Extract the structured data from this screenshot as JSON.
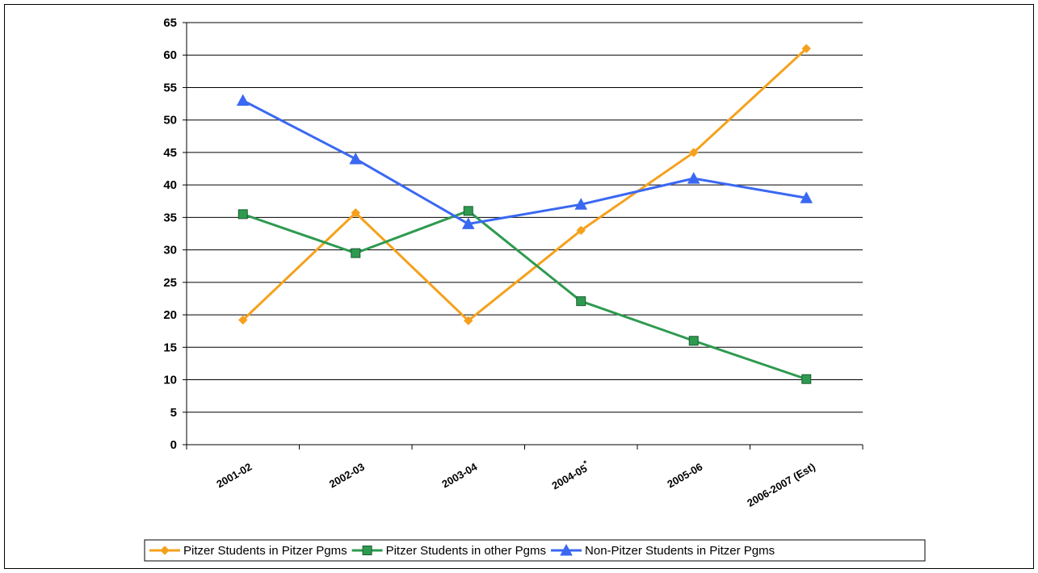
{
  "chart_data": {
    "type": "line",
    "title": "",
    "xlabel": "",
    "ylabel": "",
    "categories": [
      "2001-02",
      "2002-03",
      "2003-04",
      "2004-05",
      "2005-06",
      "2006-2007 (Est)"
    ],
    "category_marks": [
      "",
      "",
      "",
      "*",
      "",
      ""
    ],
    "ylim": [
      0,
      65
    ],
    "yticks": [
      0,
      5,
      10,
      15,
      20,
      25,
      30,
      35,
      40,
      45,
      50,
      55,
      60,
      65
    ],
    "grid": "horizontal",
    "legend_position": "bottom",
    "series": [
      {
        "name": "Pitzer Students in Pitzer Pgms",
        "color": "#f5a11c",
        "marker": "diamond",
        "values": [
          19.2,
          35.7,
          19.1,
          33,
          45,
          61
        ]
      },
      {
        "name": "Pitzer Students in other Pgms",
        "color": "#2e9a50",
        "marker": "square",
        "values": [
          35.5,
          29.5,
          36,
          22.1,
          16,
          10.1
        ]
      },
      {
        "name": "Non-Pitzer Students in Pitzer Pgms",
        "color": "#3a68f2",
        "marker": "triangle",
        "values": [
          53,
          44,
          34,
          37,
          41,
          38
        ]
      }
    ]
  }
}
